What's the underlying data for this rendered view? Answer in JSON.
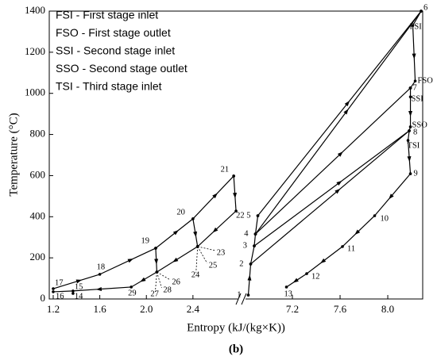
{
  "chart_data": [
    {
      "type": "line",
      "ylabel": "Temperature (°C)",
      "xlabel": "Entropy (kJ/(kg×K))",
      "caption": "(b)",
      "ylim": [
        0,
        1400
      ],
      "yticks": [
        0,
        200,
        400,
        600,
        800,
        1000,
        1200,
        1400
      ],
      "xlim": [
        1.166,
        2.79
      ],
      "xticks": [
        1.2,
        1.6,
        {
          "value": 2,
          "label": "2.0"
        },
        2.4
      ],
      "series": [
        {
          "color": "#000000",
          "x": [
            1.2,
            1.6,
            2.08,
            2.4,
            2.75
          ],
          "values": [
            50,
            120,
            247,
            390,
            598
          ],
          "labels": [
            "17",
            "18",
            "19",
            "20",
            "21"
          ]
        },
        {
          "color": "#000000",
          "x": [
            2.75,
            2.77,
            2.44
          ],
          "values": [
            598,
            428,
            255
          ],
          "labels": [
            null,
            "22",
            "23"
          ]
        },
        {
          "color": "#000000",
          "x": [
            2.4,
            2.44
          ],
          "values": [
            390,
            255
          ],
          "labels": [
            null,
            null
          ]
        },
        {
          "color": "#000000",
          "x": [
            2.08,
            2.09
          ],
          "values": [
            247,
            131
          ],
          "labels": [
            null,
            "26"
          ]
        },
        {
          "color": "#000000",
          "x": [
            2.44,
            2.09,
            1.87,
            1.37,
            1.2
          ],
          "values": [
            255,
            131,
            58,
            39,
            35
          ],
          "labels": [
            null,
            null,
            "29",
            "15",
            "16"
          ]
        },
        {
          "color": "#000000",
          "x": [
            1.37
          ],
          "values": [
            27
          ],
          "labels": [
            "14"
          ]
        },
        {
          "color": "#000000",
          "x": [
            2.44,
            2.44
          ],
          "values": [
            255,
            255
          ],
          "labels": [
            "24",
            "25"
          ]
        },
        {
          "color": "#000000",
          "x": [
            2.09,
            2.09
          ],
          "values": [
            131,
            131
          ],
          "labels": [
            "27",
            "28"
          ]
        }
      ]
    },
    {
      "type": "line",
      "ylim": [
        0,
        1400
      ],
      "xlim": [
        6.8,
        8.293
      ],
      "xticks": [
        7.2,
        7.6,
        {
          "value": 8,
          "label": "8.0"
        }
      ],
      "annotations": [
        "FSI - First stage inlet",
        "FSO - First stage outlet",
        "SSI - Second stage inlet",
        "SSO - Second stage outlet",
        "TSI - Third stage inlet"
      ],
      "series": [
        {
          "color": "#000000",
          "x": [
            6.83,
            6.85,
            6.88,
            6.89,
            6.91
          ],
          "values": [
            19,
            170,
            258,
            316,
            405
          ],
          "labels": [
            "1",
            "2",
            "3",
            "4",
            "5"
          ]
        },
        {
          "color": "#000000",
          "x": [
            6.91,
            8.28
          ],
          "values": [
            405,
            1400
          ],
          "labels": [
            null,
            "6"
          ]
        },
        {
          "color": "#000000",
          "x": [
            6.89,
            8.28
          ],
          "values": [
            316,
            1400
          ],
          "labels": [
            null,
            null
          ]
        },
        {
          "color": "#000000",
          "x": [
            8.28,
            8.21,
            8.23,
            8.19
          ],
          "values": [
            1400,
            1330,
            1060,
            1026
          ],
          "labels": [
            null,
            "FSI",
            "FSO",
            "7"
          ]
        },
        {
          "color": "#000000",
          "x": [
            6.89,
            8.19
          ],
          "values": [
            316,
            1026
          ],
          "labels": [
            null,
            null
          ]
        },
        {
          "color": "#000000",
          "x": [
            6.88,
            8.18
          ],
          "values": [
            258,
            818
          ],
          "labels": [
            null,
            null
          ]
        },
        {
          "color": "#000000",
          "x": [
            6.85,
            8.18
          ],
          "values": [
            170,
            818
          ],
          "labels": [
            null,
            null
          ]
        },
        {
          "color": "#000000",
          "x": [
            8.19,
            8.19,
            8.19,
            8.18,
            8.17,
            8.19,
            7.89,
            7.62,
            7.32,
            7.15
          ],
          "values": [
            1026,
            983,
            837,
            818,
            771,
            609,
            405,
            255,
            123,
            58
          ],
          "labels": [
            null,
            "SSI",
            "SSO",
            "8",
            "TSI",
            "9",
            "10",
            "11",
            "12",
            "13"
          ]
        }
      ]
    }
  ]
}
